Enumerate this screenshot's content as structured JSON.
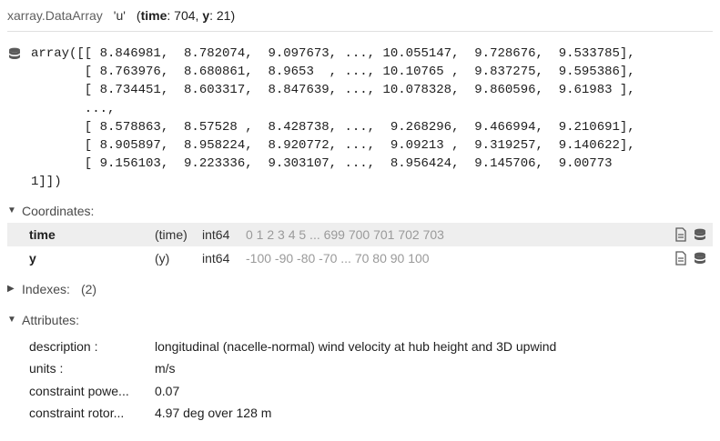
{
  "header": {
    "type_label": "xarray.DataArray",
    "var_name": "'u'",
    "dims_open": "(",
    "dim1_name": "time",
    "dim1_sep": ": 704, ",
    "dim2_name": "y",
    "dim2_sep": ": 21)"
  },
  "array_preview": "array([[ 8.846981,  8.782074,  9.097673, ..., 10.055147,  9.728676,  9.533785],\n       [ 8.763976,  8.680861,  8.9653  , ..., 10.10765 ,  9.837275,  9.595386],\n       [ 8.734451,  8.603317,  8.847639, ..., 10.078328,  9.860596,  9.61983 ],\n       ...,\n       [ 8.578863,  8.57528 ,  8.428738, ...,  9.268296,  9.466994,  9.210691],\n       [ 8.905897,  8.958224,  8.920772, ...,  9.09213 ,  9.319257,  9.140622],\n       [ 9.156103,  9.223336,  9.303107, ...,  8.956424,  9.145706,  9.00773 \n1]])",
  "sections": {
    "coordinates": {
      "caret": "▼",
      "label": "Coordinates:"
    },
    "indexes": {
      "caret": "▶",
      "label": "Indexes:",
      "count": "(2)"
    },
    "attributes": {
      "caret": "▼",
      "label": "Attributes:"
    }
  },
  "coordinates": [
    {
      "name": "time",
      "dims": "(time)",
      "dtype": "int64",
      "preview": "0 1 2 3 4 5 ... 699 700 701 702 703"
    },
    {
      "name": "y",
      "dims": "(y)",
      "dtype": "int64",
      "preview": "-100 -90 -80 -70 ... 70 80 90 100"
    }
  ],
  "attributes": [
    {
      "key": "description :",
      "value": "longitudinal (nacelle-normal) wind velocity at hub height and 3D upwind"
    },
    {
      "key": "units :",
      "value": "m/s"
    },
    {
      "key": "constraint powe...",
      "value": "0.07"
    },
    {
      "key": "constraint rotor...",
      "value": "4.97 deg over 128 m"
    }
  ],
  "icons": {
    "array": "database-icon",
    "attrs": "document-icon",
    "data": "database-icon"
  }
}
